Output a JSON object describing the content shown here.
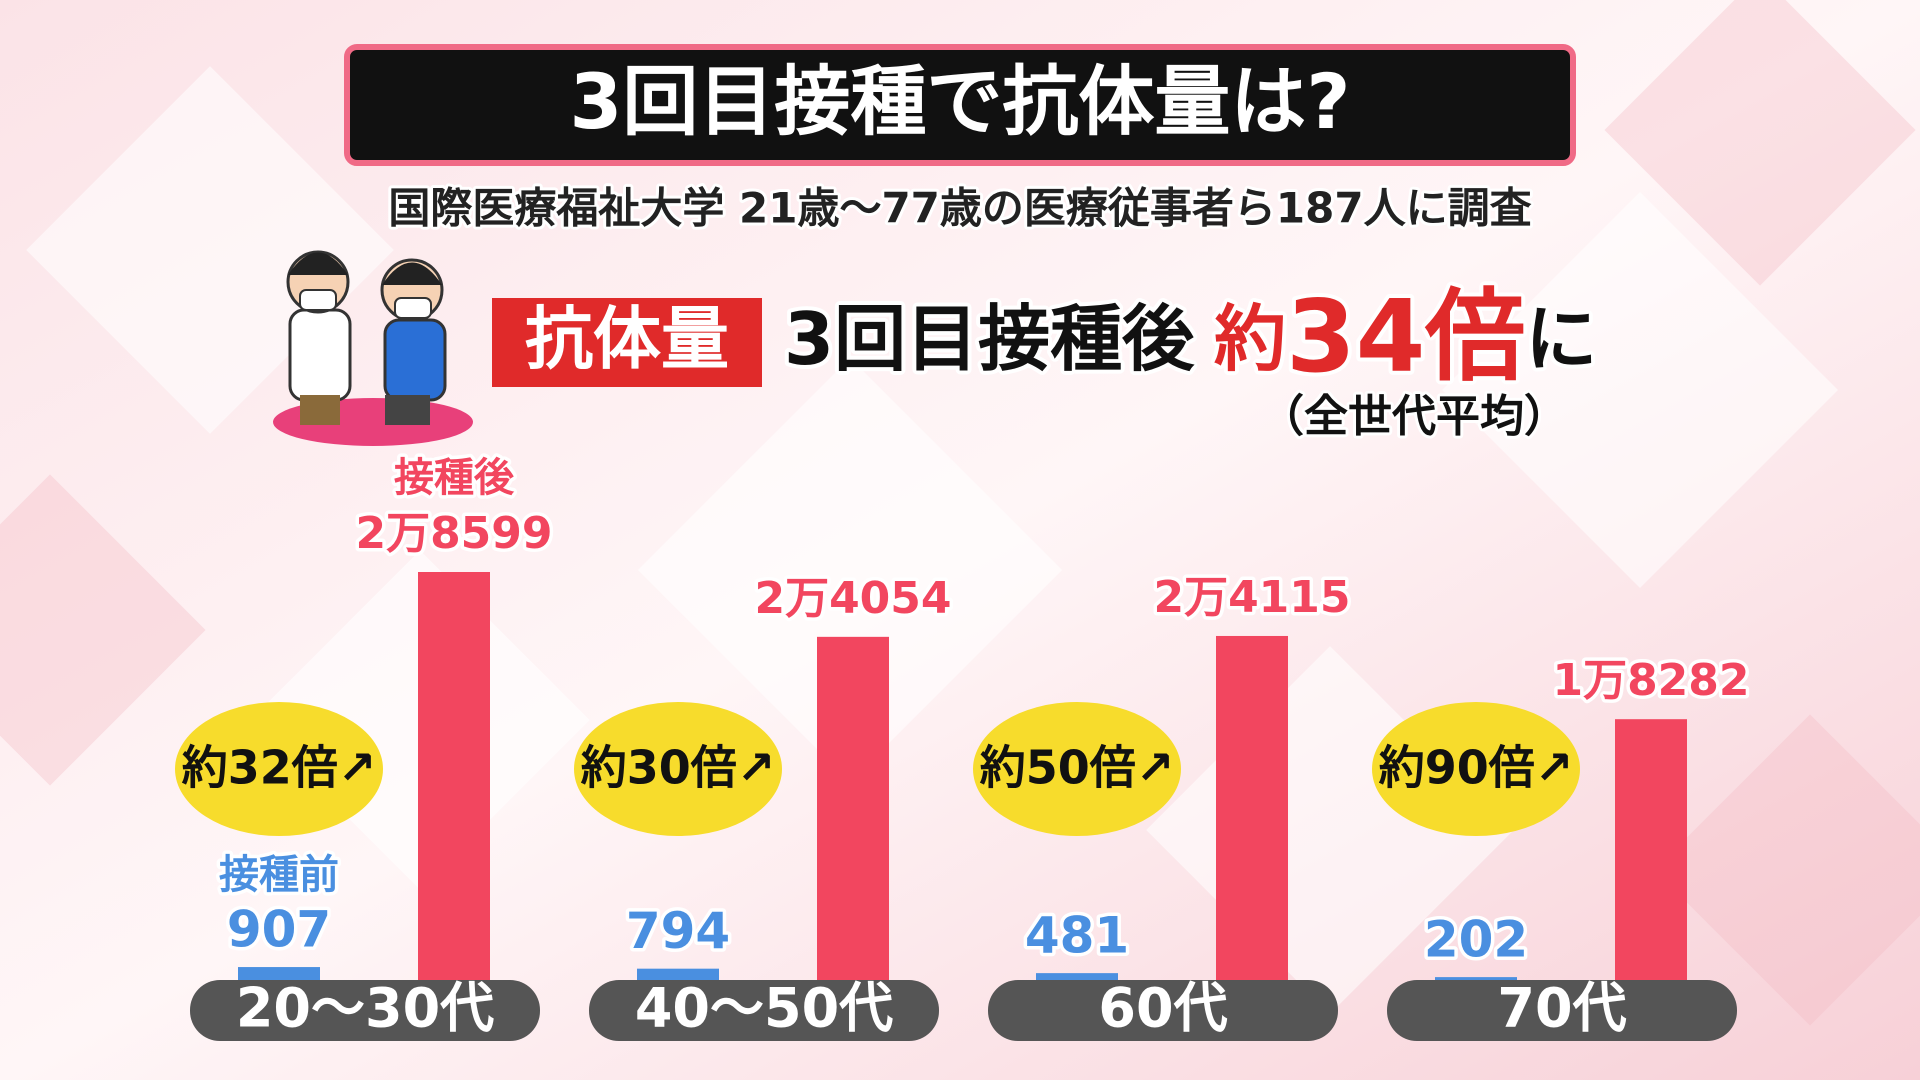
{
  "header": {
    "title": "3回目接種で抗体量は?",
    "subtitle": "国際医療福祉大学 21歳〜77歳の医療従事者ら187人に調査"
  },
  "headline": {
    "badge": "抗体量",
    "text": "3回目接種後",
    "approx": "約",
    "multiple": "34倍",
    "suffix": "に",
    "note": "（全世代平均）"
  },
  "chart_data": {
    "type": "bar",
    "categories": [
      "20〜30代",
      "40〜50代",
      "60代",
      "70代"
    ],
    "series": [
      {
        "name": "接種前",
        "color": "#4a8fe0",
        "values": [
          907,
          794,
          481,
          202
        ]
      },
      {
        "name": "接種後",
        "color": "#f2465f",
        "values": [
          28599,
          24054,
          24115,
          18282
        ],
        "value_labels": [
          "2万8599",
          "2万4054",
          "2万4115",
          "1万8282"
        ]
      }
    ],
    "annotations": [
      "約32倍↗",
      "約30倍↗",
      "約50倍↗",
      "約90倍↗"
    ]
  }
}
